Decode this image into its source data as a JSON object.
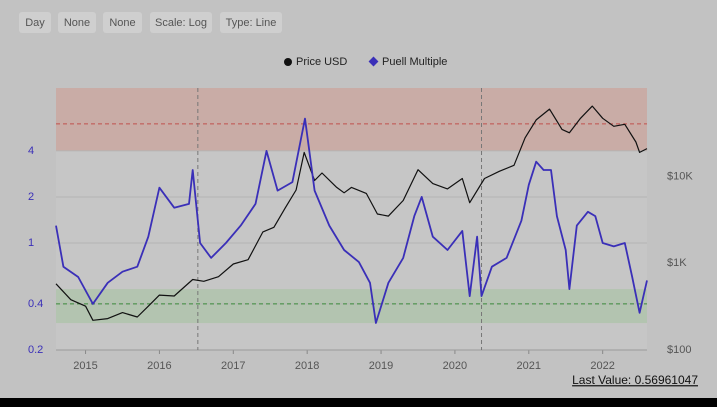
{
  "buttons": [
    "Day",
    "None",
    "None",
    "Scale: Log",
    "Type: Line"
  ],
  "footer": "Last Value: 0.56961047",
  "chart_data": {
    "type": "line",
    "log_scale": true,
    "xlim": [
      2014.6,
      2022.6
    ],
    "xticks": [
      2015,
      2016,
      2017,
      2018,
      2019,
      2020,
      2021,
      2022
    ],
    "ylim": [
      0.2,
      10.3
    ],
    "yticks": [
      0.2,
      0.4,
      1,
      2,
      4
    ],
    "y2lim": [
      100,
      105000
    ],
    "y2ticks": [
      {
        "value": 100,
        "label": "$100"
      },
      {
        "value": 1000,
        "label": "$1K"
      },
      {
        "value": 10000,
        "label": "$10K"
      }
    ],
    "zones": [
      {
        "from": 4,
        "to": 10.3,
        "color": "#c9aca6"
      },
      {
        "from": 0.3,
        "to": 0.5,
        "color": "#b3c4b0"
      }
    ],
    "hlines": [
      {
        "value": 6,
        "color": "#c0504d"
      },
      {
        "value": 0.4,
        "color": "#3a8a3a"
      }
    ],
    "vlines": [
      2016.52,
      2020.36
    ],
    "series": [
      {
        "name": "Price USD",
        "color": "#111111",
        "axis": "y2",
        "x": [
          2014.6,
          2014.8,
          2015.0,
          2015.1,
          2015.3,
          2015.5,
          2015.7,
          2015.85,
          2016.0,
          2016.2,
          2016.45,
          2016.6,
          2016.8,
          2017.0,
          2017.2,
          2017.4,
          2017.55,
          2017.7,
          2017.85,
          2017.96,
          2018.1,
          2018.2,
          2018.4,
          2018.5,
          2018.6,
          2018.8,
          2018.95,
          2019.1,
          2019.3,
          2019.5,
          2019.7,
          2019.9,
          2020.1,
          2020.2,
          2020.4,
          2020.6,
          2020.8,
          2020.95,
          2021.1,
          2021.28,
          2021.45,
          2021.55,
          2021.7,
          2021.86,
          2022.0,
          2022.15,
          2022.3,
          2022.45,
          2022.5,
          2022.6
        ],
        "values": [
          580,
          380,
          320,
          220,
          230,
          270,
          240,
          320,
          430,
          420,
          650,
          620,
          700,
          980,
          1100,
          2300,
          2600,
          4300,
          7000,
          19000,
          9000,
          11000,
          7500,
          6500,
          7500,
          6400,
          3700,
          3500,
          5300,
          12000,
          8300,
          7200,
          9500,
          5000,
          9500,
          11500,
          13500,
          28000,
          45000,
          60000,
          35000,
          32000,
          47000,
          65000,
          47000,
          38000,
          40000,
          25000,
          19000,
          21000
        ]
      },
      {
        "name": "Puell Multiple",
        "color": "#3a2fb8",
        "x": [
          2014.6,
          2014.7,
          2014.9,
          2015.1,
          2015.3,
          2015.5,
          2015.7,
          2015.85,
          2016.0,
          2016.2,
          2016.4,
          2016.45,
          2016.55,
          2016.7,
          2016.9,
          2017.1,
          2017.3,
          2017.45,
          2017.6,
          2017.8,
          2017.97,
          2018.1,
          2018.3,
          2018.5,
          2018.7,
          2018.85,
          2018.93,
          2019.1,
          2019.3,
          2019.45,
          2019.55,
          2019.7,
          2019.9,
          2020.1,
          2020.2,
          2020.3,
          2020.36,
          2020.5,
          2020.7,
          2020.9,
          2021.0,
          2021.1,
          2021.2,
          2021.3,
          2021.38,
          2021.5,
          2021.55,
          2021.65,
          2021.8,
          2021.9,
          2022.0,
          2022.15,
          2022.3,
          2022.4,
          2022.5,
          2022.6
        ],
        "values": [
          1.3,
          0.7,
          0.6,
          0.4,
          0.55,
          0.65,
          0.7,
          1.1,
          2.3,
          1.7,
          1.8,
          3.0,
          1.0,
          0.8,
          1.0,
          1.3,
          1.8,
          4.0,
          2.2,
          2.5,
          6.5,
          2.2,
          1.3,
          0.9,
          0.75,
          0.55,
          0.3,
          0.55,
          0.8,
          1.5,
          2.0,
          1.1,
          0.9,
          1.2,
          0.45,
          1.1,
          0.45,
          0.7,
          0.8,
          1.4,
          2.4,
          3.4,
          3.0,
          3.0,
          1.5,
          0.9,
          0.5,
          1.3,
          1.6,
          1.5,
          1.0,
          0.95,
          1.0,
          0.6,
          0.35,
          0.57
        ]
      }
    ]
  }
}
